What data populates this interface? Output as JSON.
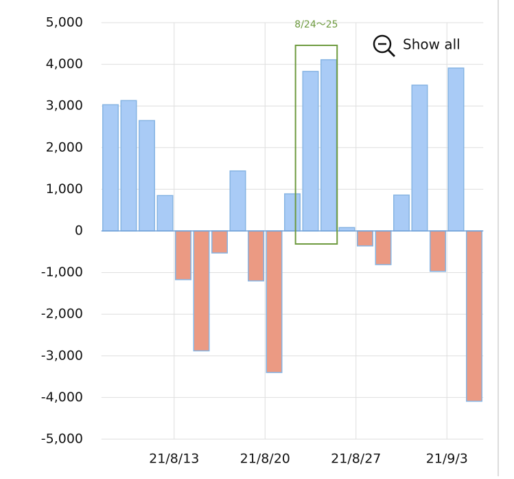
{
  "chart_data": {
    "type": "bar",
    "categories": [
      null,
      null,
      null,
      null,
      "21/8/13",
      null,
      null,
      null,
      null,
      "21/8/20",
      null,
      null,
      null,
      null,
      "21/8/27",
      null,
      null,
      null,
      null,
      "21/9/3",
      null
    ],
    "values": [
      3030,
      3130,
      2650,
      850,
      -1170,
      -2880,
      -530,
      1440,
      -1200,
      -3400,
      890,
      3830,
      4110,
      80,
      -360,
      -810,
      860,
      3500,
      -970,
      3910,
      -4090
    ],
    "positive_color": "#a9cbf6",
    "negative_color": "#eb9a83",
    "bar_border_color": "#86b4e3",
    "ylim": [
      -5000,
      5000
    ],
    "yticks": [
      {
        "value": -5000,
        "label": "-5,000"
      },
      {
        "value": -4000,
        "label": "-4,000"
      },
      {
        "value": -3000,
        "label": "-3,000"
      },
      {
        "value": -2000,
        "label": "-2,000"
      },
      {
        "value": -1000,
        "label": "-1,000"
      },
      0,
      {
        "value": 1000,
        "label": "1,000"
      },
      {
        "value": 2000,
        "label": "2,000"
      },
      {
        "value": 3000,
        "label": "3,000"
      },
      {
        "value": 4000,
        "label": "4,000"
      },
      {
        "value": 5000,
        "label": "5,000"
      }
    ],
    "grid": true,
    "annotation": "8/24〜25",
    "button": "Show all"
  }
}
